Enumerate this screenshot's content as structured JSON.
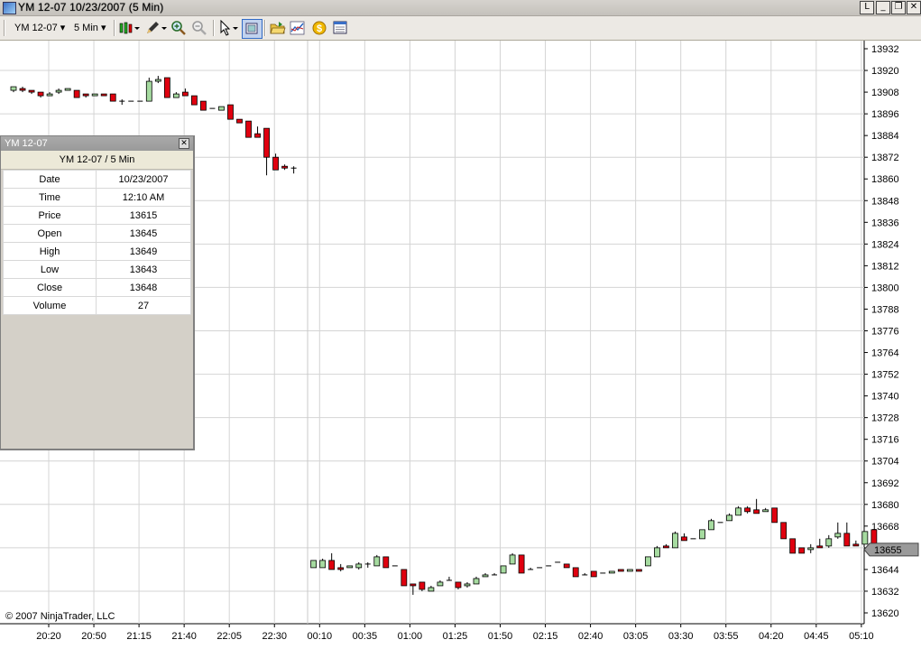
{
  "window": {
    "title": "YM 12-07  10/23/2007  (5 Min)",
    "buttons": [
      "L",
      "_",
      "❐",
      "✕"
    ]
  },
  "toolbar": {
    "instrument": "YM 12-07",
    "interval": "5 Min",
    "icons": [
      "candlestick-icon",
      "pencil-icon",
      "zoom-in-icon",
      "zoom-out-icon",
      "cursor-icon",
      "data-box-icon",
      "open-folder-icon",
      "chart-indicator-icon",
      "dollar-icon",
      "properties-icon"
    ]
  },
  "data_box": {
    "title": "YM 12-07",
    "header": "YM 12-07 / 5 Min",
    "rows": [
      {
        "label": "Date",
        "value": "10/23/2007"
      },
      {
        "label": "Time",
        "value": "12:10 AM"
      },
      {
        "label": "Price",
        "value": "13615"
      },
      {
        "label": "Open",
        "value": "13645"
      },
      {
        "label": "High",
        "value": "13649"
      },
      {
        "label": "Low",
        "value": "13643"
      },
      {
        "label": "Close",
        "value": "13648"
      },
      {
        "label": "Volume",
        "value": "27"
      }
    ]
  },
  "copyright": "© 2007 NinjaTrader, LLC",
  "colors": {
    "up": "#a6dba0",
    "down": "#e0000f",
    "grid": "#d4d4d4",
    "last_price_bg": "#9a9a9a"
  },
  "chart_data": {
    "type": "candlestick",
    "ylim": [
      13617,
      13934
    ],
    "y_ticks": [
      13932,
      13920,
      13908,
      13896,
      13884,
      13872,
      13860,
      13848,
      13836,
      13824,
      13812,
      13800,
      13788,
      13776,
      13764,
      13752,
      13740,
      13728,
      13716,
      13704,
      13692,
      13680,
      13668,
      13656,
      13644,
      13632,
      13620
    ],
    "x_ticks": [
      "20:20",
      "20:50",
      "21:15",
      "21:40",
      "22:05",
      "22:30",
      "00:10",
      "00:35",
      "01:00",
      "01:25",
      "01:50",
      "02:15",
      "02:40",
      "03:05",
      "03:30",
      "03:55",
      "04:20",
      "04:45",
      "05:10"
    ],
    "last_price": "13655",
    "candles": [
      [
        13909,
        13911,
        13911,
        13908
      ],
      [
        13910,
        13909,
        13911,
        13908
      ],
      [
        13909,
        13908,
        13909,
        13907
      ],
      [
        13908,
        13906,
        13908,
        13905
      ],
      [
        13906,
        13907,
        13908,
        13906
      ],
      [
        13908,
        13909,
        13910,
        13907
      ],
      [
        13909,
        13910,
        13910,
        13910
      ],
      [
        13909,
        13905,
        13909,
        13905
      ],
      [
        13907,
        13906,
        13907,
        13905
      ],
      [
        13906,
        13907,
        13907,
        13906
      ],
      [
        13907,
        13906,
        13907,
        13906
      ],
      [
        13907,
        13903,
        13907,
        13903
      ],
      [
        13903,
        13903,
        13904,
        13901
      ],
      [
        13903,
        13903,
        13903,
        13903
      ],
      [
        13903,
        13903,
        13903,
        13903
      ],
      [
        13903,
        13914,
        13916,
        13903
      ],
      [
        13914,
        13915,
        13917,
        13913
      ],
      [
        13916,
        13905,
        13916,
        13905
      ],
      [
        13905,
        13907,
        13908,
        13905
      ],
      [
        13908,
        13906,
        13910,
        13906
      ],
      [
        13906,
        13901,
        13906,
        13901
      ],
      [
        13903,
        13898,
        13903,
        13898
      ],
      [
        13899,
        13899,
        13899,
        13899
      ],
      [
        13898,
        13900,
        13900,
        13898
      ],
      [
        13901,
        13893,
        13901,
        13893
      ],
      [
        13893,
        13891,
        13893,
        13891
      ],
      [
        13892,
        13883,
        13892,
        13883
      ],
      [
        13885,
        13883,
        13889,
        13883
      ],
      [
        13888,
        13872,
        13888,
        13862
      ],
      [
        13872,
        13865,
        13874,
        13865
      ],
      [
        13867,
        13866,
        13868,
        13865
      ],
      [
        13866,
        13866,
        13867,
        13863
      ],
      [
        13645,
        13649,
        13649,
        13645
      ],
      [
        13645,
        13649,
        13650,
        13645
      ],
      [
        13649,
        13644,
        13653,
        13644
      ],
      [
        13645,
        13644,
        13647,
        13643
      ],
      [
        13645,
        13646,
        13646,
        13645
      ],
      [
        13645,
        13647,
        13648,
        13644
      ],
      [
        13647,
        13647,
        13648,
        13645
      ],
      [
        13646,
        13651,
        13652,
        13646
      ],
      [
        13651,
        13645,
        13651,
        13645
      ],
      [
        13646,
        13646,
        13646,
        13646
      ],
      [
        13644,
        13635,
        13644,
        13635
      ],
      [
        13636,
        13635,
        13636,
        13630
      ],
      [
        13637,
        13633,
        13637,
        13632
      ],
      [
        13632,
        13634,
        13635,
        13632
      ],
      [
        13635,
        13637,
        13638,
        13635
      ],
      [
        13638,
        13638,
        13640,
        13638
      ],
      [
        13637,
        13634,
        13637,
        13633
      ],
      [
        13635,
        13636,
        13637,
        13634
      ],
      [
        13636,
        13639,
        13640,
        13636
      ],
      [
        13640,
        13641,
        13642,
        13640
      ],
      [
        13641,
        13641,
        13642,
        13641
      ],
      [
        13642,
        13646,
        13646,
        13642
      ],
      [
        13647,
        13652,
        13653,
        13647
      ],
      [
        13652,
        13642,
        13652,
        13642
      ],
      [
        13644,
        13644,
        13645,
        13644
      ],
      [
        13645,
        13645,
        13645,
        13645
      ],
      [
        13646,
        13646,
        13646,
        13646
      ],
      [
        13648,
        13648,
        13648,
        13648
      ],
      [
        13647,
        13645,
        13647,
        13645
      ],
      [
        13645,
        13640,
        13645,
        13640
      ],
      [
        13641,
        13641,
        13642,
        13641
      ],
      [
        13643,
        13640,
        13643,
        13640
      ],
      [
        13642,
        13642,
        13642,
        13642
      ],
      [
        13642,
        13643,
        13643,
        13642
      ],
      [
        13644,
        13643,
        13644,
        13643
      ],
      [
        13643,
        13644,
        13644,
        13643
      ],
      [
        13644,
        13643,
        13644,
        13643
      ],
      [
        13646,
        13651,
        13651,
        13646
      ],
      [
        13651,
        13656,
        13657,
        13651
      ],
      [
        13657,
        13656,
        13658,
        13656
      ],
      [
        13656,
        13664,
        13665,
        13656
      ],
      [
        13662,
        13660,
        13664,
        13660
      ],
      [
        13661,
        13661,
        13661,
        13661
      ],
      [
        13661,
        13666,
        13666,
        13661
      ],
      [
        13666,
        13671,
        13672,
        13666
      ],
      [
        13670,
        13670,
        13670,
        13670
      ],
      [
        13671,
        13674,
        13675,
        13671
      ],
      [
        13674,
        13678,
        13679,
        13674
      ],
      [
        13678,
        13676,
        13679,
        13675
      ],
      [
        13677,
        13675,
        13683,
        13675
      ],
      [
        13676,
        13677,
        13678,
        13676
      ],
      [
        13678,
        13670,
        13678,
        13670
      ],
      [
        13670,
        13661,
        13670,
        13661
      ],
      [
        13661,
        13653,
        13661,
        13653
      ],
      [
        13656,
        13653,
        13656,
        13653
      ],
      [
        13655,
        13656,
        13658,
        13653
      ],
      [
        13657,
        13656,
        13661,
        13656
      ],
      [
        13657,
        13661,
        13663,
        13656
      ],
      [
        13662,
        13664,
        13670,
        13661
      ],
      [
        13664,
        13657,
        13670,
        13657
      ],
      [
        13658,
        13657,
        13660,
        13657
      ],
      [
        13658,
        13665,
        13665,
        13658
      ],
      [
        13666,
        13656,
        13666,
        13656
      ]
    ]
  }
}
